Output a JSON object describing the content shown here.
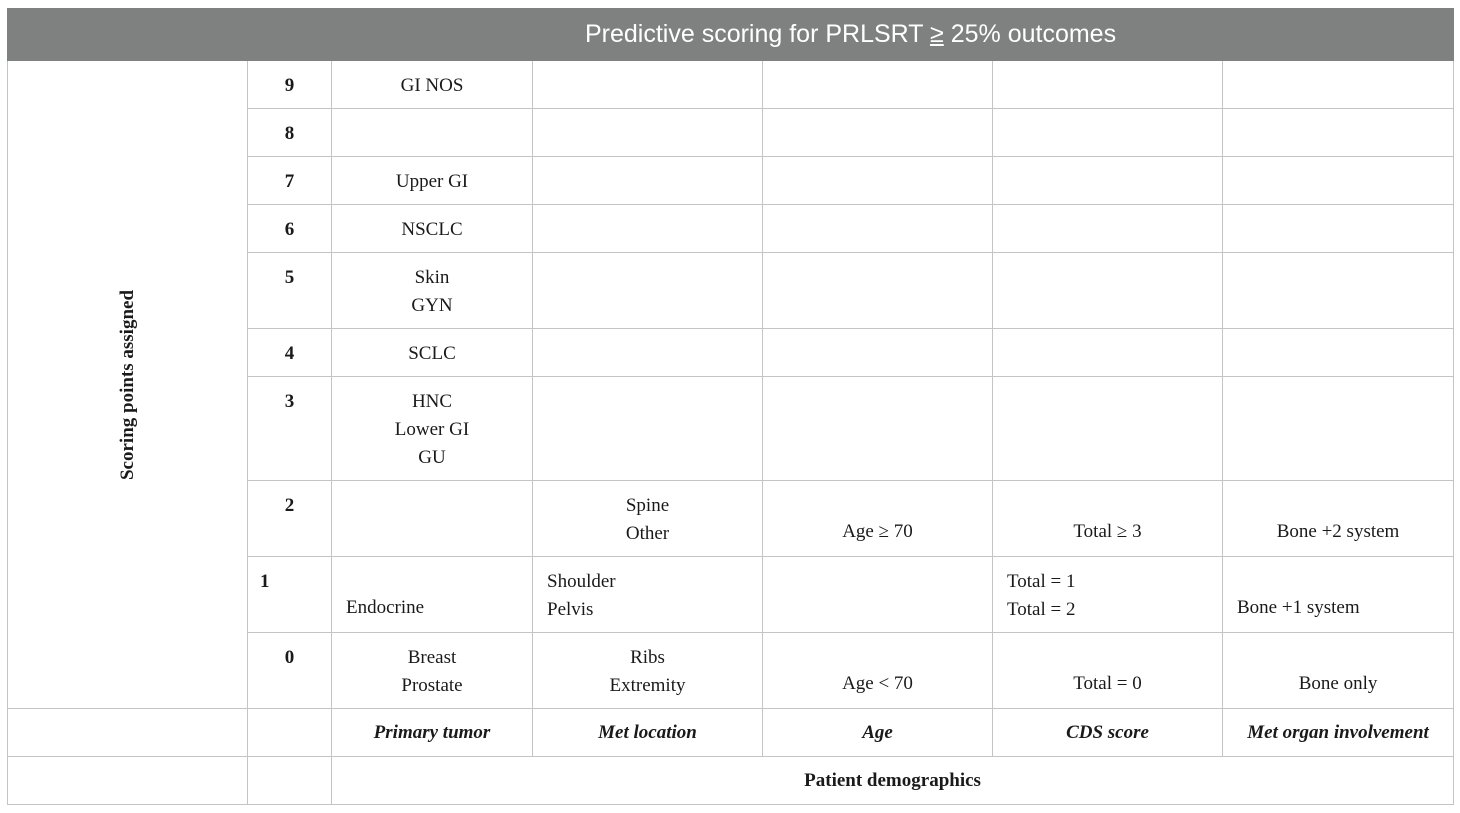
{
  "table": {
    "title_prefix": "Predictive scoring for PRLSRT ",
    "title_symbol": "≥",
    "title_suffix": " 25% outcomes",
    "side_label": "Scoring points assigned",
    "rows": {
      "p9": {
        "points": "9",
        "primary_tumor": "GI NOS"
      },
      "p8": {
        "points": "8"
      },
      "p7": {
        "points": "7",
        "primary_tumor": "Upper GI"
      },
      "p6": {
        "points": "6",
        "primary_tumor": "NSCLC"
      },
      "p5": {
        "points": "5",
        "primary_tumor": [
          "Skin",
          "GYN"
        ]
      },
      "p4": {
        "points": "4",
        "primary_tumor": "SCLC"
      },
      "p3": {
        "points": "3",
        "primary_tumor": [
          "HNC",
          "Lower GI",
          "GU"
        ]
      },
      "p2": {
        "points": "2",
        "met_location": [
          "Spine",
          "Other"
        ],
        "age": "Age ≥ 70",
        "cds_score": "Total ≥ 3",
        "met_organ": "Bone +2 system"
      },
      "p1": {
        "points": "1",
        "primary_tumor": "Endocrine",
        "met_location": [
          "Shoulder",
          "Pelvis"
        ],
        "cds_score": [
          "Total = 1",
          "Total = 2"
        ],
        "met_organ": "Bone +1 system"
      },
      "p0": {
        "points": "0",
        "primary_tumor": [
          "Breast",
          "Prostate"
        ],
        "met_location": [
          "Ribs",
          "Extremity"
        ],
        "age": "Age < 70",
        "cds_score": "Total = 0",
        "met_organ": "Bone only"
      }
    },
    "column_headers": {
      "primary_tumor": "Primary tumor",
      "met_location": "Met location",
      "age": "Age",
      "cds_score": "CDS score",
      "met_organ": "Met organ involvement"
    },
    "footer": "Patient demographics"
  },
  "colors": {
    "header_background": "#7f8180",
    "header_text": "#ffffff",
    "grid_line": "#c4c4c4"
  }
}
